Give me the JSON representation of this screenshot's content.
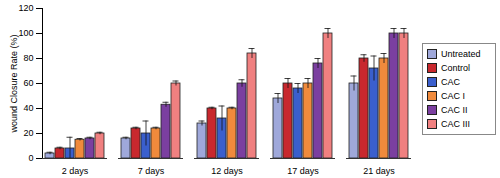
{
  "chart_data": {
    "type": "bar",
    "y_label": "wound Closure Rate (%)",
    "categories": [
      "2 days",
      "7 days",
      "12 days",
      "17 days",
      "21 days"
    ],
    "series": [
      {
        "name": "Untreated",
        "color": "#9fa8da",
        "values": [
          4,
          16,
          28,
          48,
          60
        ],
        "errors": [
          1,
          1,
          2,
          4,
          6
        ]
      },
      {
        "name": "Control",
        "color": "#c8282e",
        "values": [
          8,
          24,
          40,
          60,
          80
        ],
        "errors": [
          1,
          1,
          1,
          4,
          3
        ]
      },
      {
        "name": "CAC",
        "color": "#3a5fcd",
        "values": [
          8,
          20,
          32,
          56,
          72
        ],
        "errors": [
          9,
          10,
          10,
          4,
          10
        ]
      },
      {
        "name": "CAC I",
        "color": "#f08a3c",
        "values": [
          15,
          24,
          40,
          60,
          80
        ],
        "errors": [
          1,
          1,
          1,
          4,
          4
        ]
      },
      {
        "name": "CAC II",
        "color": "#7b3fa0",
        "values": [
          16,
          43,
          60,
          76,
          100
        ],
        "errors": [
          1,
          2,
          3,
          4,
          4
        ]
      },
      {
        "name": "CAC III",
        "color": "#f08080",
        "values": [
          20,
          60,
          84,
          100,
          100
        ],
        "errors": [
          1,
          2,
          4,
          4,
          4
        ]
      }
    ],
    "ylim": [
      0,
      120
    ],
    "yticks": [
      0,
      20,
      40,
      60,
      80,
      100,
      120
    ],
    "grid": false,
    "legend": "right"
  }
}
